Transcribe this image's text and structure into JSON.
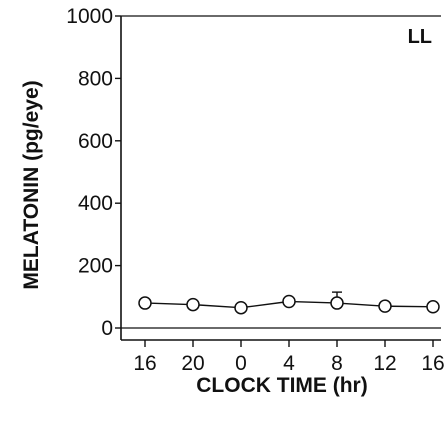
{
  "chart_data": {
    "type": "line",
    "title": "",
    "panel_label": "LL",
    "xlabel": "CLOCK TIME (hr)",
    "ylabel": "MELATONIN (pg/eye)",
    "x_tick_labels": [
      "16",
      "20",
      "0",
      "4",
      "8",
      "12",
      "16"
    ],
    "y_ticks": [
      0,
      200,
      400,
      600,
      800,
      1000
    ],
    "y_tick_labels": [
      "0",
      "200",
      "400",
      "600",
      "800",
      "1000"
    ],
    "ylim": [
      0,
      1000
    ],
    "series": [
      {
        "x": [
          "16",
          "20",
          "0",
          "4",
          "8",
          "12",
          "16"
        ],
        "values": [
          80,
          75,
          65,
          85,
          80,
          70,
          68
        ],
        "error": [
          0,
          0,
          0,
          0,
          35,
          0,
          0
        ],
        "marker": "open-circle"
      }
    ],
    "grid": false,
    "box": true
  }
}
